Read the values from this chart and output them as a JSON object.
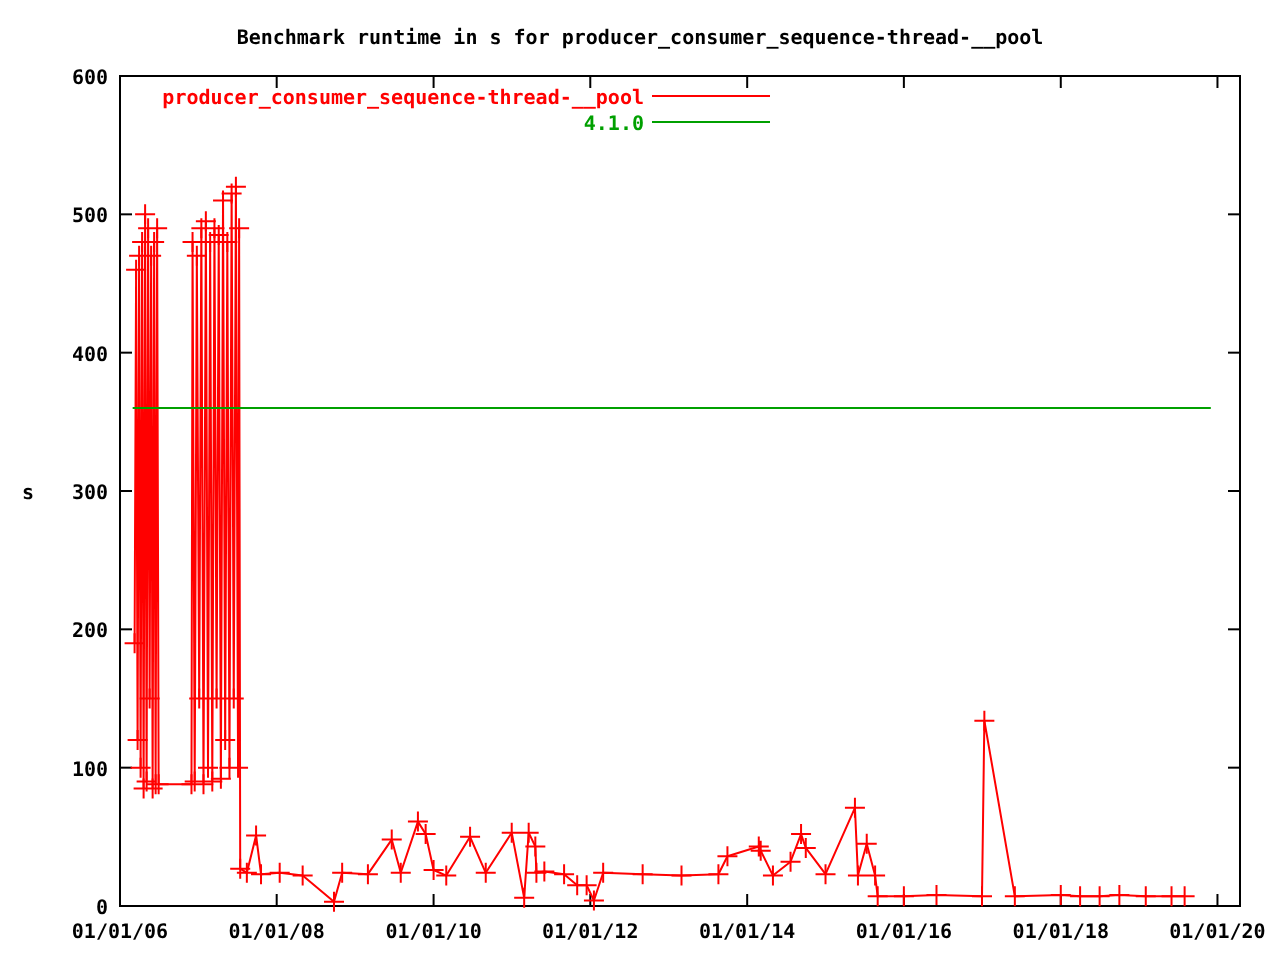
{
  "chart_data": {
    "type": "line",
    "title": "Benchmark runtime in s for producer_consumer_sequence-thread-__pool",
    "ylabel": "s",
    "xlim": [
      "2006-01-01",
      "2020-04-15"
    ],
    "ylim": [
      0,
      600
    ],
    "yticks": [
      0,
      100,
      200,
      300,
      400,
      500,
      600
    ],
    "xticks": [
      {
        "value": "2006-01-01",
        "label": "01/01/06"
      },
      {
        "value": "2008-01-01",
        "label": "01/01/08"
      },
      {
        "value": "2010-01-01",
        "label": "01/01/10"
      },
      {
        "value": "2012-01-01",
        "label": "01/01/12"
      },
      {
        "value": "2014-01-01",
        "label": "01/01/14"
      },
      {
        "value": "2016-01-01",
        "label": "01/01/16"
      },
      {
        "value": "2018-01-01",
        "label": "01/01/18"
      },
      {
        "value": "2020-01-01",
        "label": "01/01/20"
      }
    ],
    "grid": false,
    "legend": "top left",
    "line_style": "solid",
    "series": [
      {
        "name": "producer_consumer_sequence-thread-__pool",
        "color": "#ff0000",
        "marker": "cross",
        "x": [
          "2006-03-10",
          "2006-03-17",
          "2006-03-24",
          "2006-03-31",
          "2006-04-07",
          "2006-04-14",
          "2006-04-21",
          "2006-04-28",
          "2006-05-05",
          "2006-05-12",
          "2006-05-19",
          "2006-05-26",
          "2006-06-02",
          "2006-06-09",
          "2006-06-16",
          "2006-06-23",
          "2006-06-30",
          "2006-11-30",
          "2006-12-05",
          "2006-12-15",
          "2006-12-25",
          "2007-01-05",
          "2007-01-15",
          "2007-01-25",
          "2007-02-05",
          "2007-02-15",
          "2007-02-25",
          "2007-03-07",
          "2007-03-17",
          "2007-03-27",
          "2007-04-06",
          "2007-04-16",
          "2007-04-26",
          "2007-05-06",
          "2007-05-16",
          "2007-05-26",
          "2007-06-05",
          "2007-06-15",
          "2007-06-25",
          "2007-07-05",
          "2007-07-10",
          "2007-07-15",
          "2007-08-15",
          "2007-09-27",
          "2007-10-20",
          "2008-01-15",
          "2008-05-01",
          "2008-09-24",
          "2008-11-01",
          "2009-03-01",
          "2009-06-20",
          "2009-08-01",
          "2009-10-20",
          "2009-11-25",
          "2010-01-01",
          "2010-03-01",
          "2010-06-20",
          "2010-09-01",
          "2010-12-31",
          "2011-02-27",
          "2011-03-20",
          "2011-04-20",
          "2011-04-25",
          "2011-06-01",
          "2011-09-01",
          "2011-11-01",
          "2011-12-15",
          "2012-01-18",
          "2012-03-01",
          "2012-09-01",
          "2013-03-01",
          "2013-08-20",
          "2013-10-01",
          "2014-02-24",
          "2014-03-05",
          "2014-05-01",
          "2014-07-22",
          "2014-09-09",
          "2014-10-01",
          "2015-01-01",
          "2015-05-18",
          "2015-06-01",
          "2015-07-12",
          "2015-08-20",
          "2015-09-01",
          "2016-01-01",
          "2016-06-01",
          "2016-12-30",
          "2017-01-10",
          "2017-06-01",
          "2018-01-01",
          "2018-04-01",
          "2018-07-01",
          "2018-10-01",
          "2019-02-01",
          "2019-06-01",
          "2019-08-01"
        ],
        "values": [
          190,
          460,
          120,
          470,
          100,
          480,
          85,
          500,
          90,
          490,
          150,
          470,
          85,
          480,
          88,
          490,
          88,
          88,
          480,
          90,
          470,
          150,
          490,
          88,
          495,
          100,
          480,
          90,
          490,
          150,
          485,
          92,
          510,
          120,
          480,
          100,
          515,
          150,
          520,
          100,
          490,
          27,
          24,
          51,
          23,
          24,
          22,
          3,
          24,
          23,
          48,
          24,
          61,
          52,
          26,
          22,
          50,
          24,
          53,
          6,
          53,
          43,
          24,
          25,
          23,
          15,
          15,
          4,
          24,
          23,
          22,
          23,
          36,
          43,
          40,
          22,
          32,
          52,
          42,
          23,
          71,
          22,
          45,
          22,
          7,
          7,
          8,
          7,
          134,
          7,
          8,
          7,
          7,
          8,
          7,
          7,
          7
        ]
      },
      {
        "name": "4.1.0",
        "color": "#00a000",
        "marker": "none",
        "x": [
          "2006-03-01",
          "2019-12-01"
        ],
        "values": [
          360,
          360
        ]
      }
    ]
  }
}
